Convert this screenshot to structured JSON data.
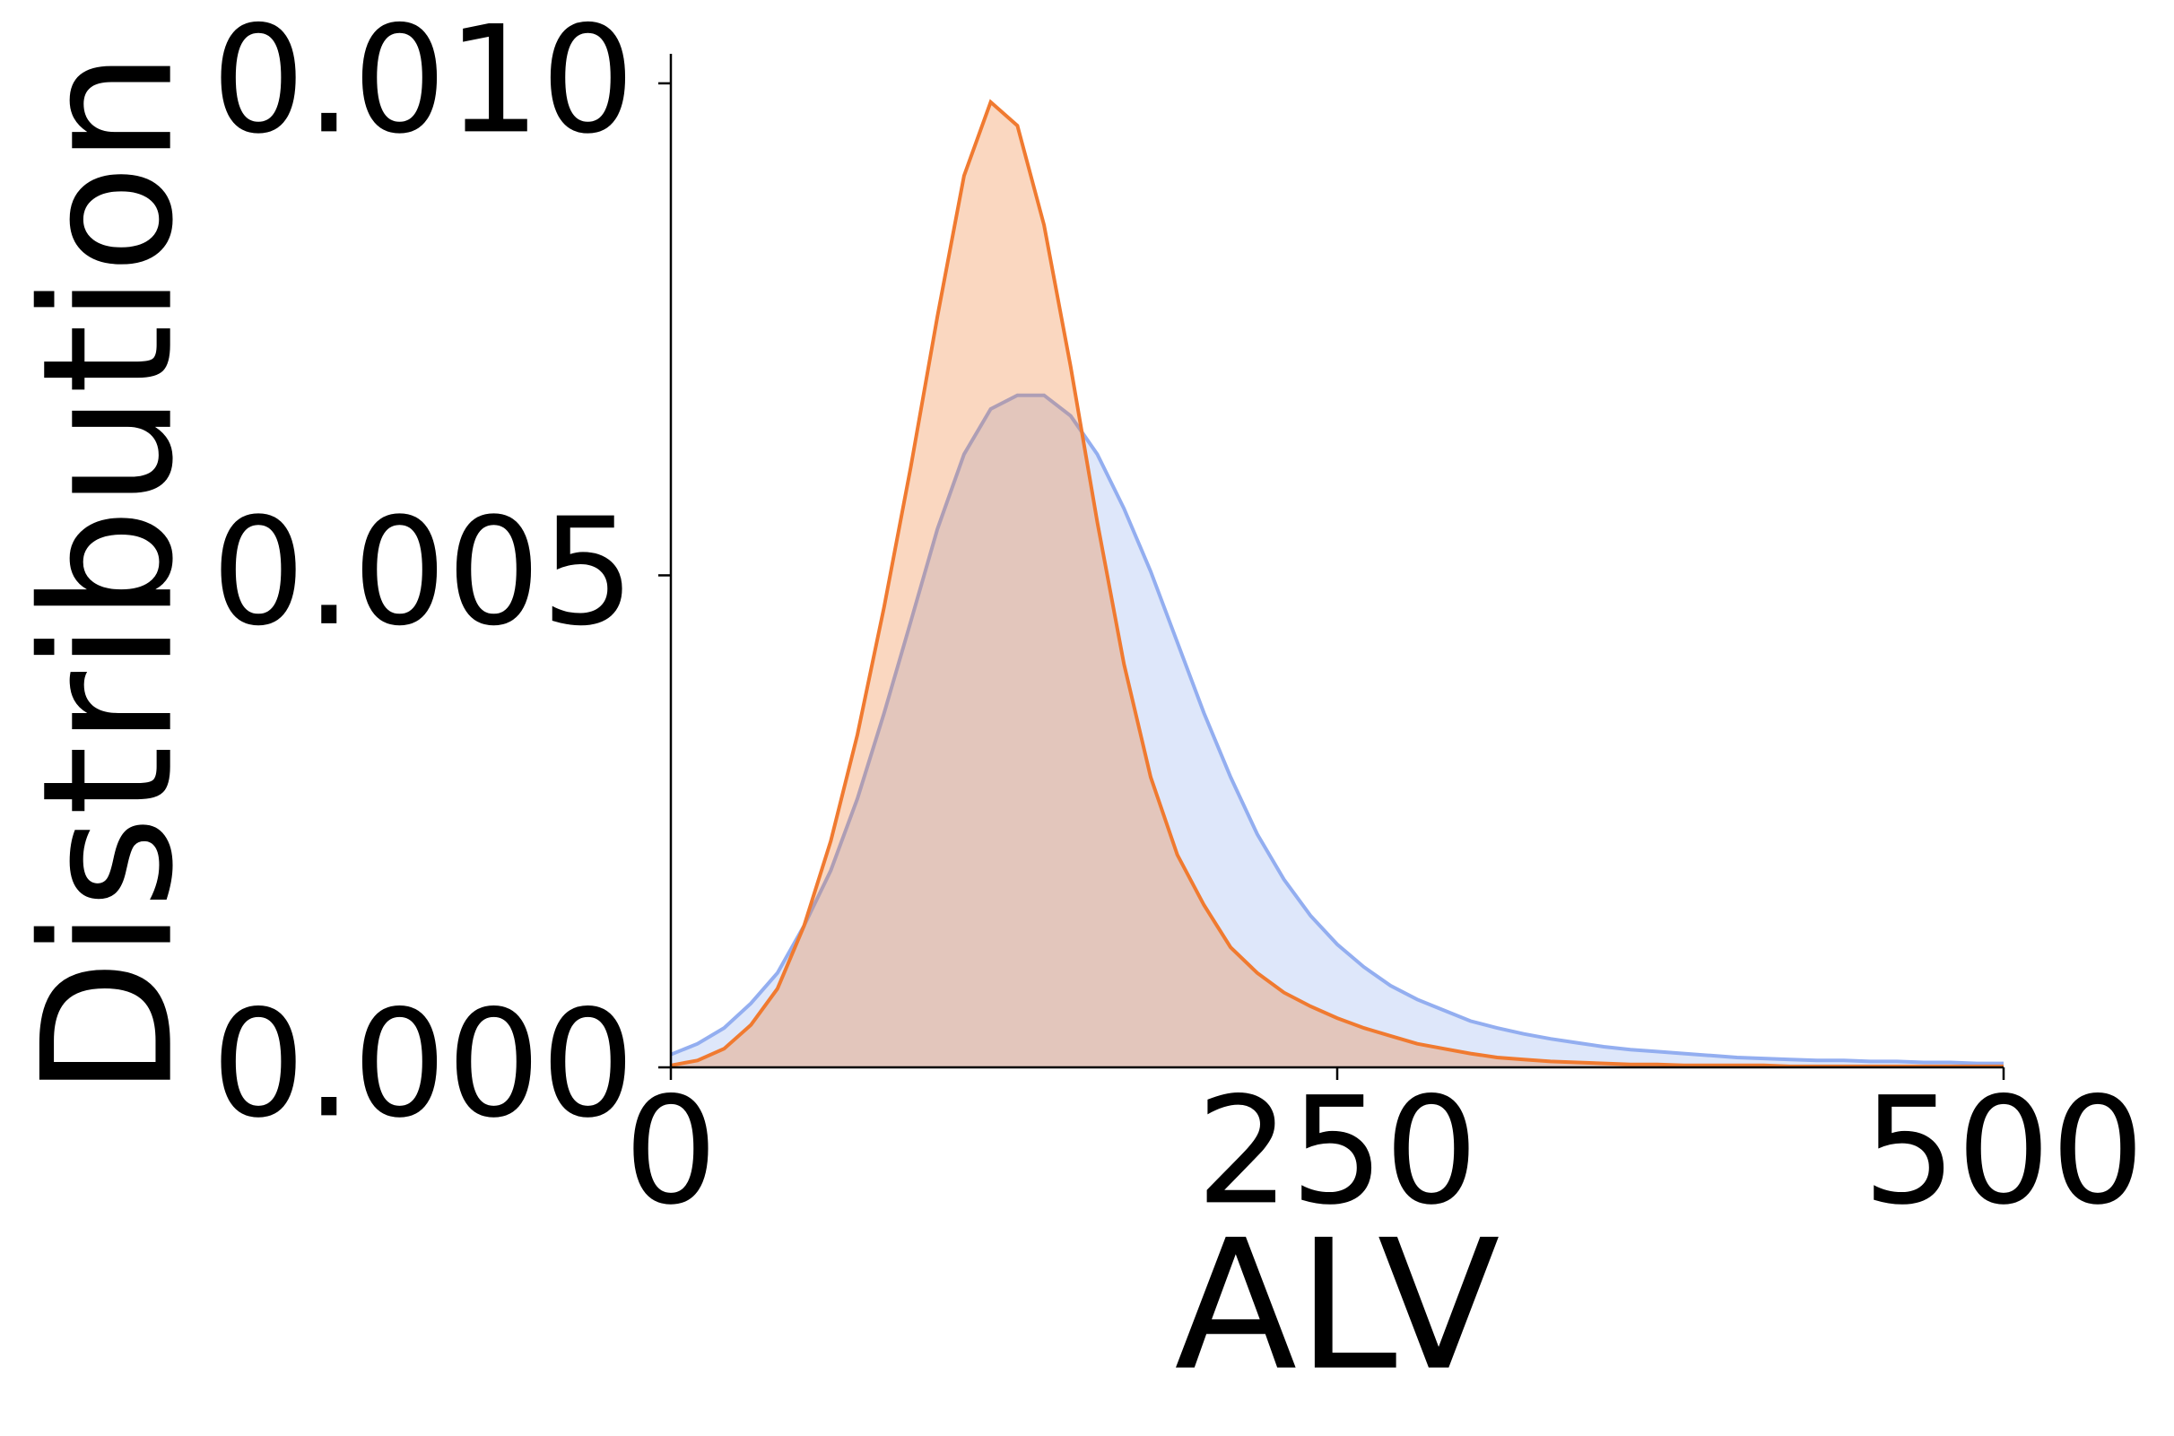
{
  "chart_data": {
    "type": "area",
    "x_label": "ALV",
    "y_label": "Distribution",
    "x": [
      0,
      10,
      20,
      30,
      40,
      50,
      60,
      70,
      80,
      90,
      100,
      110,
      120,
      130,
      140,
      150,
      160,
      170,
      180,
      190,
      200,
      210,
      220,
      230,
      240,
      250,
      260,
      270,
      280,
      290,
      300,
      310,
      320,
      330,
      340,
      350,
      360,
      370,
      380,
      390,
      400,
      410,
      420,
      430,
      440,
      450,
      460,
      470,
      480,
      490,
      500
    ],
    "series": [
      {
        "color": "#93aef0",
        "values": [
          0.00013,
          0.00024,
          0.0004,
          0.00065,
          0.00096,
          0.00144,
          0.002,
          0.00273,
          0.0036,
          0.00453,
          0.00547,
          0.00623,
          0.00669,
          0.00683,
          0.00683,
          0.00662,
          0.00623,
          0.00568,
          0.00504,
          0.00432,
          0.0036,
          0.00295,
          0.00237,
          0.00191,
          0.00154,
          0.00125,
          0.00102,
          0.00083,
          0.00069,
          0.00058,
          0.00047,
          0.0004,
          0.00034,
          0.00029,
          0.00025,
          0.00021,
          0.00018,
          0.00016,
          0.00014,
          0.00012,
          0.0001,
          9e-05,
          8e-05,
          7e-05,
          7e-05,
          6e-05,
          6e-05,
          5e-05,
          5e-05,
          4e-05,
          4e-05
        ]
      },
      {
        "color": "#f07a30",
        "values": [
          2e-05,
          7e-05,
          0.00019,
          0.00043,
          0.0008,
          0.00144,
          0.0023,
          0.00338,
          0.00468,
          0.0061,
          0.00763,
          0.00906,
          0.00981,
          0.00957,
          0.00856,
          0.00712,
          0.00554,
          0.0041,
          0.00295,
          0.00216,
          0.00165,
          0.00122,
          0.00096,
          0.00076,
          0.00062,
          0.0005,
          0.0004,
          0.00032,
          0.00024,
          0.00019,
          0.00014,
          0.0001,
          8e-05,
          6e-05,
          5e-05,
          4e-05,
          3e-05,
          3e-05,
          2e-05,
          2e-05,
          2e-05,
          2e-05,
          1e-05,
          1e-05,
          1e-05,
          1e-05,
          1e-05,
          1e-05,
          1e-05,
          1e-05,
          1e-05
        ]
      }
    ],
    "xlim": [
      0,
      500
    ],
    "xticks": [
      0,
      250,
      500
    ],
    "ylim": [
      0,
      0.0103
    ],
    "yticks": [
      {
        "value": 0,
        "label": "0.000"
      },
      {
        "value": 0.005,
        "label": "0.005"
      },
      {
        "value": 0.01,
        "label": "0.010"
      }
    ]
  }
}
